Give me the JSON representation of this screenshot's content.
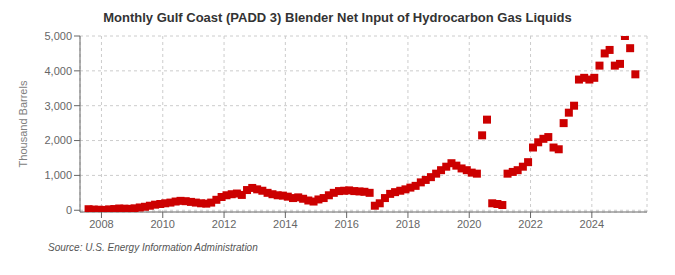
{
  "chart_data": {
    "type": "scatter",
    "title": "Monthly Gulf Coast (PADD 3) Blender Net Input of Hydrocarbon Gas Liquids",
    "ylabel": "Thousand Barrels",
    "source": "Source: U.S. Energy Information Administration",
    "color": "#cc0000",
    "marker": "square",
    "grid": true,
    "xlim": [
      2007.3,
      2025.8
    ],
    "xticks": [
      2008,
      2010,
      2012,
      2014,
      2016,
      2018,
      2020,
      2022,
      2024
    ],
    "ylim": [
      -50,
      5000
    ],
    "yticks": [
      0,
      {
        "value": 1000,
        "label": "1,000"
      },
      {
        "value": 2000,
        "label": "2,000"
      },
      {
        "value": 3000,
        "label": "3,000"
      },
      {
        "value": 4000,
        "label": "4,000"
      },
      {
        "value": 5000,
        "label": "5,000"
      }
    ],
    "x": [
      2007.58,
      2007.75,
      2007.92,
      2008.08,
      2008.25,
      2008.42,
      2008.58,
      2008.75,
      2008.92,
      2009.08,
      2009.25,
      2009.42,
      2009.58,
      2009.75,
      2009.92,
      2010.08,
      2010.25,
      2010.42,
      2010.58,
      2010.75,
      2010.92,
      2011.08,
      2011.25,
      2011.42,
      2011.58,
      2011.75,
      2011.92,
      2012.08,
      2012.25,
      2012.42,
      2012.58,
      2012.75,
      2012.92,
      2013.08,
      2013.25,
      2013.42,
      2013.58,
      2013.75,
      2013.92,
      2014.08,
      2014.25,
      2014.42,
      2014.58,
      2014.75,
      2014.92,
      2015.08,
      2015.25,
      2015.42,
      2015.58,
      2015.75,
      2015.92,
      2016.08,
      2016.25,
      2016.42,
      2016.58,
      2016.75,
      2016.92,
      2017.08,
      2017.25,
      2017.42,
      2017.58,
      2017.75,
      2017.92,
      2018.08,
      2018.25,
      2018.42,
      2018.58,
      2018.75,
      2018.92,
      2019.08,
      2019.25,
      2019.42,
      2019.58,
      2019.75,
      2019.92,
      2020.08,
      2020.25,
      2020.42,
      2020.58,
      2020.75,
      2020.92,
      2021.08,
      2021.25,
      2021.42,
      2021.58,
      2021.75,
      2021.92,
      2022.08,
      2022.25,
      2022.42,
      2022.58,
      2022.75,
      2022.92,
      2023.08,
      2023.25,
      2023.42,
      2023.58,
      2023.75,
      2023.92,
      2024.08,
      2024.25,
      2024.42,
      2024.58,
      2024.75,
      2024.92,
      2025.08,
      2025.25,
      2025.42
    ],
    "values": [
      30,
      20,
      15,
      10,
      25,
      35,
      50,
      45,
      40,
      55,
      80,
      100,
      130,
      160,
      180,
      200,
      220,
      250,
      270,
      260,
      240,
      220,
      200,
      190,
      220,
      300,
      380,
      430,
      460,
      480,
      440,
      580,
      640,
      600,
      560,
      500,
      460,
      430,
      420,
      390,
      350,
      370,
      330,
      280,
      250,
      310,
      350,
      430,
      500,
      550,
      560,
      570,
      550,
      540,
      530,
      500,
      130,
      200,
      350,
      470,
      520,
      560,
      600,
      650,
      700,
      800,
      870,
      950,
      1050,
      1150,
      1250,
      1350,
      1280,
      1200,
      1150,
      1080,
      1050,
      2150,
      2600,
      200,
      180,
      150,
      1050,
      1100,
      1150,
      1250,
      1380,
      1800,
      1950,
      2050,
      2100,
      1800,
      1750,
      2500,
      2800,
      3000,
      3750,
      3800,
      3750,
      3800,
      4150,
      4500,
      4600,
      4150,
      4200,
      5000,
      4650,
      3900
    ]
  }
}
